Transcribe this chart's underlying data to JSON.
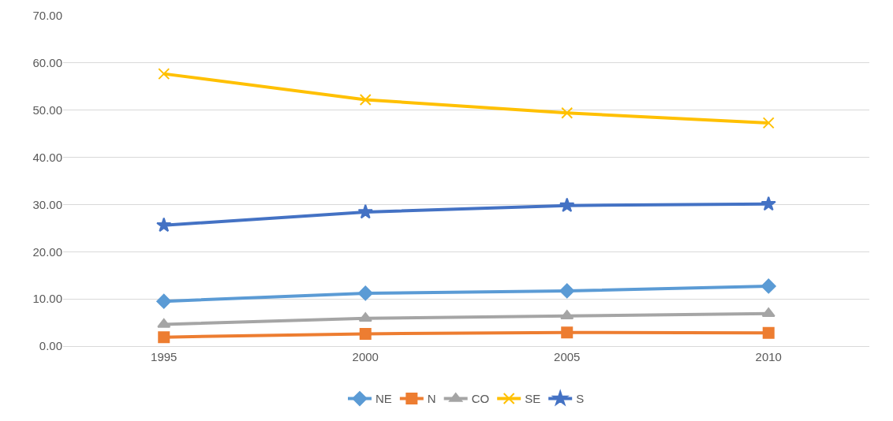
{
  "chart_data": {
    "type": "line",
    "categories": [
      "1995",
      "2000",
      "2005",
      "2010"
    ],
    "series": [
      {
        "name": "NE",
        "color": "#5b9bd5",
        "marker": "diamond",
        "values": [
          9.5,
          11.2,
          11.7,
          12.7
        ]
      },
      {
        "name": "N",
        "color": "#ed7d31",
        "marker": "square",
        "values": [
          1.9,
          2.6,
          2.9,
          2.8
        ]
      },
      {
        "name": "CO",
        "color": "#a5a5a5",
        "marker": "triangle",
        "values": [
          4.6,
          5.9,
          6.4,
          6.9
        ]
      },
      {
        "name": "SE",
        "color": "#ffc000",
        "marker": "cross",
        "values": [
          57.7,
          52.2,
          49.4,
          47.3
        ]
      },
      {
        "name": "S",
        "color": "#4472c4",
        "marker": "star",
        "values": [
          25.6,
          28.4,
          29.8,
          30.1
        ]
      }
    ],
    "ylim": [
      0,
      70
    ],
    "yticks": [
      {
        "value": 0,
        "label": "0.00"
      },
      {
        "value": 10,
        "label": "10.00"
      },
      {
        "value": 20,
        "label": "20.00"
      },
      {
        "value": 30,
        "label": "30.00"
      },
      {
        "value": 40,
        "label": "40.00"
      },
      {
        "value": 50,
        "label": "50.00"
      },
      {
        "value": 60,
        "label": "60.00"
      },
      {
        "value": 70,
        "label": "70.00"
      }
    ],
    "grid": "y",
    "legend": "bottom",
    "line_style": "solid"
  }
}
